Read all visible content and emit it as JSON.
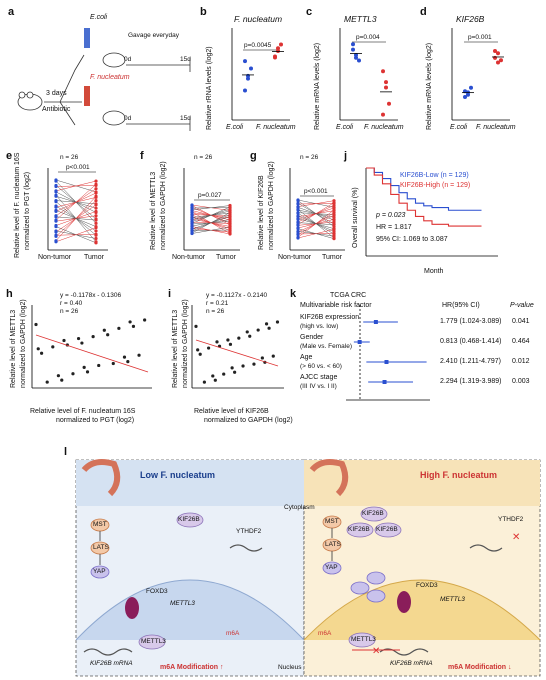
{
  "panels": {
    "a": {
      "letter": "a",
      "ecoli": "E.coli",
      "fnuc": "F. nucleatum",
      "gavage": "Gavage everyday",
      "days": "3 days",
      "antibiotic": "Antibiotic",
      "d0": "0d",
      "d15": "15d"
    },
    "b": {
      "letter": "b",
      "title": "F. nucleatum",
      "ylabel": "Relative rRNA levels (log2)",
      "p": "p=0.0045",
      "xcats": [
        "E.coli",
        "F. nucleatum"
      ],
      "yticks": [
        "20",
        "15",
        "10"
      ]
    },
    "c": {
      "letter": "c",
      "title": "METTL3",
      "ylabel": "Relative mRNA levels (log2)",
      "p": "p=0.004",
      "xcats": [
        "E.coli",
        "F. nucleatum"
      ],
      "yticks": [
        "-6.5",
        "-7.0",
        "-7.5",
        "-8.0"
      ]
    },
    "d": {
      "letter": "d",
      "title": "KIF26B",
      "ylabel": "Relative mRNA levels (log2)",
      "p": "p=0.001",
      "xcats": [
        "E.coli",
        "F. nucleatum"
      ],
      "yticks": [
        "20",
        "18",
        "16",
        "14",
        "12"
      ]
    },
    "e": {
      "letter": "e",
      "n": "n = 26",
      "p": "p<0.001",
      "ylabel1": "Relative level of F. nucleatum 16S",
      "ylabel2": "normalized to PGT (log2)",
      "xcats": [
        "Non-tumor",
        "Tumor"
      ],
      "yticks": [
        "5",
        "0",
        "-5",
        "-10",
        "-15",
        "-20"
      ]
    },
    "f": {
      "letter": "f",
      "n": "n = 26",
      "p": "p=0.027",
      "ylabel1": "Relative level of METTL3",
      "ylabel2": "normalized to GAPDH (log2)",
      "xcats": [
        "Non-tumor",
        "Tumor"
      ],
      "yticks": [
        "0",
        "-2",
        "-4",
        "-6",
        "-8"
      ]
    },
    "g": {
      "letter": "g",
      "n": "n = 26",
      "p": "p<0.001",
      "ylabel1": "Relative level of KIF26B",
      "ylabel2": "normalized to GAPDH (log2)",
      "xcats": [
        "Non-tumor",
        "Tumor"
      ],
      "yticks": [
        "0",
        "5",
        "10",
        "15",
        "20"
      ]
    },
    "h": {
      "letter": "h",
      "eq": "y = -0.1178x - 0.1306",
      "r": "r = 0.40",
      "n": "n = 26",
      "ylabel1": "Relative level of METTL3",
      "ylabel2": "normalized to GAPDH (log2)",
      "xlabel1": "Relative level of F. nucleatum 16S",
      "xlabel2": "normalized to PGT (log2)",
      "xticks": [
        "-5",
        "0",
        "5",
        "10"
      ],
      "yticks": [
        "-2",
        "-4",
        "-6",
        "-8"
      ]
    },
    "i": {
      "letter": "i",
      "eq": "y = -0.1127x - 0.2140",
      "r": "r = 0.21",
      "n": "n = 26",
      "ylabel1": "Relative level of METTL3",
      "ylabel2": "normalized to GAPDH (log2)",
      "xlabel1": "Relative level of KIF26B",
      "xlabel2": "normalized to GAPDH (log2)",
      "xticks": [
        "-2",
        "0",
        "2",
        "4",
        "6",
        "8"
      ],
      "yticks": [
        "0",
        "-2",
        "-4",
        "-6",
        "-8"
      ]
    },
    "j": {
      "letter": "j",
      "legend_low": "KIF26B-Low (n = 129)",
      "legend_high": "KIF26B-High (n = 129)",
      "p": "p = 0.023",
      "hr": "HR = 1.817",
      "ci": "95% CI: 1.069 to 3.087",
      "ylabel": "Overall survival (%)",
      "xlabel": "Month",
      "xticks": [
        "0",
        "40",
        "80",
        "120",
        "160"
      ],
      "yticks": [
        "100",
        "80",
        "60",
        "40",
        "20",
        "0"
      ]
    },
    "k": {
      "letter": "k",
      "title1": "TCGA CRC",
      "title2": "Multivariable risk factor",
      "col_hr": "HR(95% CI)",
      "col_p": "P-value",
      "rows": [
        {
          "label1": "KIF26B expression",
          "label2": "(high vs. low)",
          "hr": "1.779 (1.024-3.089)",
          "p": "0.041"
        },
        {
          "label1": "Gender",
          "label2": "(Male vs. Female)",
          "hr": "0.813 (0.468-1.414)",
          "p": "0.464"
        },
        {
          "label1": "Age",
          "label2": "(> 60 vs. < 60)",
          "hr": "2.410 (1.211-4.797)",
          "p": "0.012"
        },
        {
          "label1": "AJCC stage",
          "label2": "(III IV vs. I II)",
          "hr": "2.294 (1.319-3.989)",
          "p": "0.003"
        }
      ],
      "xticks": [
        "0",
        "1",
        "2",
        "3",
        "4",
        "5"
      ]
    },
    "l": {
      "letter": "l",
      "low_title": "Low F. nucleatum",
      "high_title": "High F. nucleatum",
      "cytoplasm": "Cytoplasm",
      "nucleus": "Nucleus",
      "proteins": {
        "mst": "MST",
        "lats": "LATS",
        "yap": "YAP",
        "foxd3": "FOXD3",
        "mettl3": "METTL3",
        "kif26b": "KIF26B",
        "ythdf2": "YTHDF2",
        "m6a": "m6A",
        "mrna": "KIF26B mRNA"
      },
      "mod_low": "m6A Modification",
      "mod_high": "m6A Modification",
      "low_arrow": "↑",
      "high_arrow": "↓"
    }
  },
  "chart_data": [
    {
      "type": "scatter",
      "panel": "b",
      "title": "F. nucleatum",
      "ylabel": "Relative rRNA levels (log2)",
      "categories": [
        "E.coli",
        "F. nucleatum"
      ],
      "series": [
        {
          "name": "E.coli",
          "values": [
            13.2,
            14.5,
            15.6,
            16.4,
            14.8
          ]
        },
        {
          "name": "F. nucleatum",
          "values": [
            16.8,
            17.5,
            18.2,
            16.9,
            17.8
          ]
        }
      ],
      "ylim": [
        10,
        20
      ]
    },
    {
      "type": "scatter",
      "panel": "c",
      "title": "METTL3",
      "categories": [
        "E.coli",
        "F. nucleatum"
      ],
      "series": [
        {
          "name": "E.coli",
          "values": [
            -6.9,
            -7.0,
            -7.1,
            -6.8,
            -7.05
          ]
        },
        {
          "name": "F. nucleatum",
          "values": [
            -7.3,
            -7.6,
            -7.9,
            -8.1,
            -7.5
          ]
        }
      ],
      "ylim": [
        -8.2,
        -6.5
      ]
    },
    {
      "type": "scatter",
      "panel": "d",
      "title": "KIF26B",
      "categories": [
        "E.coli",
        "F. nucleatum"
      ],
      "series": [
        {
          "name": "E.coli",
          "values": [
            14.5,
            14.2,
            14.8,
            14.0,
            14.4
          ]
        },
        {
          "name": "F. nucleatum",
          "values": [
            17.4,
            17.8,
            17.2,
            18.0,
            17.0
          ]
        }
      ],
      "ylim": [
        12,
        20
      ]
    },
    {
      "type": "line",
      "panel": "j",
      "xlabel": "Month",
      "ylabel": "Overall survival (%)",
      "xlim": [
        0,
        160
      ],
      "ylim": [
        0,
        100
      ],
      "series": [
        {
          "name": "KIF26B-Low (n = 129)",
          "x": [
            0,
            10,
            20,
            30,
            40,
            50,
            60,
            70,
            80,
            100,
            120,
            140
          ],
          "y": [
            100,
            95,
            88,
            80,
            72,
            65,
            60,
            57,
            55,
            52,
            52,
            52
          ]
        },
        {
          "name": "KIF26B-High (n = 129)",
          "x": [
            0,
            10,
            20,
            30,
            40,
            50,
            60,
            70,
            80,
            100,
            120,
            140
          ],
          "y": [
            100,
            92,
            82,
            70,
            60,
            52,
            45,
            40,
            36,
            34,
            34,
            34
          ]
        }
      ]
    },
    {
      "type": "table",
      "panel": "k",
      "xlim": [
        0,
        5
      ],
      "rows": [
        {
          "label": "KIF26B expression",
          "hr": 1.779,
          "lo": 1.024,
          "hi": 3.089
        },
        {
          "label": "Gender",
          "hr": 0.813,
          "lo": 0.468,
          "hi": 1.414
        },
        {
          "label": "Age",
          "hr": 2.41,
          "lo": 1.211,
          "hi": 4.797
        },
        {
          "label": "AJCC stage",
          "hr": 2.294,
          "lo": 1.319,
          "hi": 3.989
        }
      ]
    }
  ]
}
